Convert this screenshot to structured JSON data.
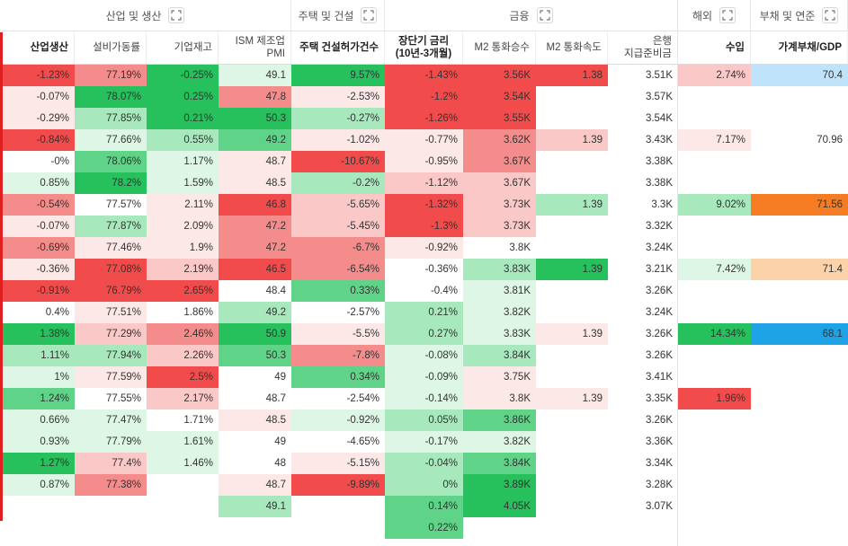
{
  "groups": [
    {
      "label": "산업 및 생산",
      "icon": "expand-icon"
    },
    {
      "label": "주택 및 건설",
      "icon": "expand-icon"
    },
    {
      "label": "금융",
      "icon": "expand-icon"
    },
    {
      "label": "해외",
      "icon": "expand-icon"
    },
    {
      "label": "부채 및 연준",
      "icon": "expand-icon"
    }
  ],
  "columns": [
    "산업생산",
    "설비가동률",
    "기업재고",
    "ISM 제조업\nPMI",
    "주택 건설허가건수",
    "장단기 금리\n(10년-3개월)",
    "M2 통화승수",
    "M2 통화속도",
    "은행\n지급준비금",
    "수입",
    "가계부채/GDP"
  ],
  "rows": [
    [
      "-1.23%",
      "77.19%",
      "-0.25%",
      "49.1",
      "9.57%",
      "-1.43%",
      "3.56K",
      "1.38",
      "3.51K",
      "2.74%",
      "70.4"
    ],
    [
      "-0.07%",
      "78.07%",
      "0.25%",
      "47.8",
      "-2.53%",
      "-1.2%",
      "3.54K",
      "",
      "3.57K",
      "",
      ""
    ],
    [
      "-0.29%",
      "77.85%",
      "0.21%",
      "50.3",
      "-0.27%",
      "-1.26%",
      "3.55K",
      "",
      "3.54K",
      "",
      ""
    ],
    [
      "-0.84%",
      "77.66%",
      "0.55%",
      "49.2",
      "-1.02%",
      "-0.77%",
      "3.62K",
      "1.39",
      "3.43K",
      "7.17%",
      "70.96"
    ],
    [
      "-0%",
      "78.06%",
      "1.17%",
      "48.7",
      "-10.67%",
      "-0.95%",
      "3.67K",
      "",
      "3.38K",
      "",
      ""
    ],
    [
      "0.85%",
      "78.2%",
      "1.59%",
      "48.5",
      "-0.2%",
      "-1.12%",
      "3.67K",
      "",
      "3.38K",
      "",
      ""
    ],
    [
      "-0.54%",
      "77.57%",
      "2.11%",
      "46.8",
      "-5.65%",
      "-1.32%",
      "3.73K",
      "1.39",
      "3.3K",
      "9.02%",
      "71.56"
    ],
    [
      "-0.07%",
      "77.87%",
      "2.09%",
      "47.2",
      "-5.45%",
      "-1.3%",
      "3.73K",
      "",
      "3.32K",
      "",
      ""
    ],
    [
      "-0.69%",
      "77.46%",
      "1.9%",
      "47.2",
      "-6.7%",
      "-0.92%",
      "3.8K",
      "",
      "3.24K",
      "",
      ""
    ],
    [
      "-0.36%",
      "77.08%",
      "2.19%",
      "46.5",
      "-6.54%",
      "-0.36%",
      "3.83K",
      "1.39",
      "3.21K",
      "7.42%",
      "71.4"
    ],
    [
      "-0.91%",
      "76.79%",
      "2.65%",
      "48.4",
      "0.33%",
      "-0.4%",
      "3.81K",
      "",
      "3.26K",
      "",
      ""
    ],
    [
      "0.4%",
      "77.51%",
      "1.86%",
      "49.2",
      "-2.57%",
      "0.21%",
      "3.82K",
      "",
      "3.24K",
      "",
      ""
    ],
    [
      "1.38%",
      "77.29%",
      "2.46%",
      "50.9",
      "-5.5%",
      "0.27%",
      "3.83K",
      "1.39",
      "3.26K",
      "14.34%",
      "68.1"
    ],
    [
      "1.11%",
      "77.94%",
      "2.26%",
      "50.3",
      "-7.8%",
      "-0.08%",
      "3.84K",
      "",
      "3.26K",
      "",
      ""
    ],
    [
      "1%",
      "77.59%",
      "2.5%",
      "49",
      "0.34%",
      "-0.09%",
      "3.75K",
      "",
      "3.41K",
      "",
      ""
    ],
    [
      "1.24%",
      "77.55%",
      "2.17%",
      "48.7",
      "-2.54%",
      "-0.14%",
      "3.8K",
      "1.39",
      "3.35K",
      "1.96%",
      ""
    ],
    [
      "0.66%",
      "77.47%",
      "1.71%",
      "48.5",
      "-0.92%",
      "0.05%",
      "3.86K",
      "",
      "3.26K",
      "",
      ""
    ],
    [
      "0.93%",
      "77.79%",
      "1.61%",
      "49",
      "-4.65%",
      "-0.17%",
      "3.82K",
      "",
      "3.36K",
      "",
      ""
    ],
    [
      "1.27%",
      "77.4%",
      "1.46%",
      "48",
      "-5.15%",
      "-0.04%",
      "3.84K",
      "",
      "3.34K",
      "",
      ""
    ],
    [
      "0.87%",
      "77.38%",
      "",
      "48.7",
      "-9.89%",
      "0%",
      "3.89K",
      "",
      "3.28K",
      "",
      ""
    ],
    [
      "",
      "",
      "",
      "49.1",
      "",
      "0.14%",
      "4.05K",
      "",
      "3.07K",
      "",
      ""
    ],
    [
      "",
      "",
      "",
      "",
      "",
      "0.22%",
      "",
      "",
      "",
      "",
      ""
    ]
  ],
  "colors": {
    "red_strong": "#f24b4b",
    "red_mid": "#f58c8c",
    "red_light": "#fbc8c8",
    "red_pale": "#fde8e8",
    "green_strong": "#26c05c",
    "green_mid": "#5fd488",
    "green_light": "#a8e8bd",
    "green_pale": "#def6e5",
    "blue_strong": "#1ea3e6",
    "blue_light": "#bfe3fb",
    "orange_strong": "#f57c22",
    "orange_light": "#fcd3a8",
    "selection": "#e02020"
  },
  "cell_colors": [
    [
      "red_strong",
      "red_mid",
      "green_strong",
      "green_pale",
      "green_strong",
      "red_strong",
      "red_strong",
      "red_strong",
      "",
      "red_light",
      "blue_light"
    ],
    [
      "red_pale",
      "green_strong",
      "green_strong",
      "red_mid",
      "red_pale",
      "red_strong",
      "red_strong",
      "",
      "",
      "",
      ""
    ],
    [
      "red_pale",
      "green_light",
      "green_strong",
      "green_strong",
      "green_light",
      "red_strong",
      "red_strong",
      "",
      "",
      "",
      ""
    ],
    [
      "red_strong",
      "green_pale",
      "green_light",
      "green_mid",
      "red_pale",
      "red_pale",
      "red_mid",
      "red_light",
      "",
      "red_pale",
      ""
    ],
    [
      "",
      "green_mid",
      "green_pale",
      "red_pale",
      "red_strong",
      "red_pale",
      "red_mid",
      "",
      "",
      "",
      ""
    ],
    [
      "green_pale",
      "green_strong",
      "green_pale",
      "red_pale",
      "green_light",
      "red_light",
      "red_light",
      "",
      "",
      "",
      ""
    ],
    [
      "red_mid",
      "",
      "red_pale",
      "red_strong",
      "red_light",
      "red_strong",
      "red_light",
      "green_light",
      "",
      "green_light",
      "orange_strong"
    ],
    [
      "red_pale",
      "green_light",
      "red_pale",
      "red_mid",
      "red_light",
      "red_strong",
      "red_light",
      "",
      "",
      "",
      ""
    ],
    [
      "red_mid",
      "red_pale",
      "red_pale",
      "red_mid",
      "red_mid",
      "red_pale",
      "",
      "",
      "",
      "",
      ""
    ],
    [
      "red_pale",
      "red_strong",
      "red_light",
      "red_strong",
      "red_mid",
      "",
      "green_light",
      "green_strong",
      "",
      "green_pale",
      "orange_light"
    ],
    [
      "red_strong",
      "red_strong",
      "red_strong",
      "",
      "green_mid",
      "",
      "green_pale",
      "",
      "",
      "",
      ""
    ],
    [
      "",
      "red_pale",
      "",
      "green_light",
      "",
      "green_light",
      "green_pale",
      "",
      "",
      "",
      ""
    ],
    [
      "green_strong",
      "red_light",
      "red_mid",
      "green_strong",
      "red_pale",
      "green_light",
      "green_pale",
      "red_pale",
      "",
      "green_strong",
      "blue_strong"
    ],
    [
      "green_light",
      "green_light",
      "red_light",
      "green_mid",
      "red_mid",
      "green_pale",
      "green_light",
      "",
      "",
      "",
      ""
    ],
    [
      "green_pale",
      "red_pale",
      "red_strong",
      "",
      "green_mid",
      "green_pale",
      "red_pale",
      "",
      "",
      "",
      ""
    ],
    [
      "green_mid",
      "",
      "red_light",
      "",
      "",
      "green_pale",
      "red_pale",
      "red_pale",
      "",
      "red_strong",
      ""
    ],
    [
      "green_pale",
      "green_pale",
      "",
      "red_pale",
      "green_pale",
      "green_light",
      "green_mid",
      "",
      "",
      "",
      ""
    ],
    [
      "green_pale",
      "green_pale",
      "green_pale",
      "",
      "",
      "green_pale",
      "green_pale",
      "",
      "",
      "",
      ""
    ],
    [
      "green_strong",
      "red_light",
      "green_pale",
      "",
      "red_pale",
      "green_light",
      "green_mid",
      "",
      "",
      "",
      ""
    ],
    [
      "green_pale",
      "red_mid",
      "",
      "red_pale",
      "red_strong",
      "green_light",
      "green_strong",
      "",
      "",
      "",
      ""
    ],
    [
      "",
      "",
      "",
      "green_light",
      "",
      "green_mid",
      "green_strong",
      "",
      "",
      "",
      ""
    ],
    [
      "",
      "",
      "",
      "",
      "",
      "green_mid",
      "",
      "",
      "",
      "",
      ""
    ]
  ]
}
